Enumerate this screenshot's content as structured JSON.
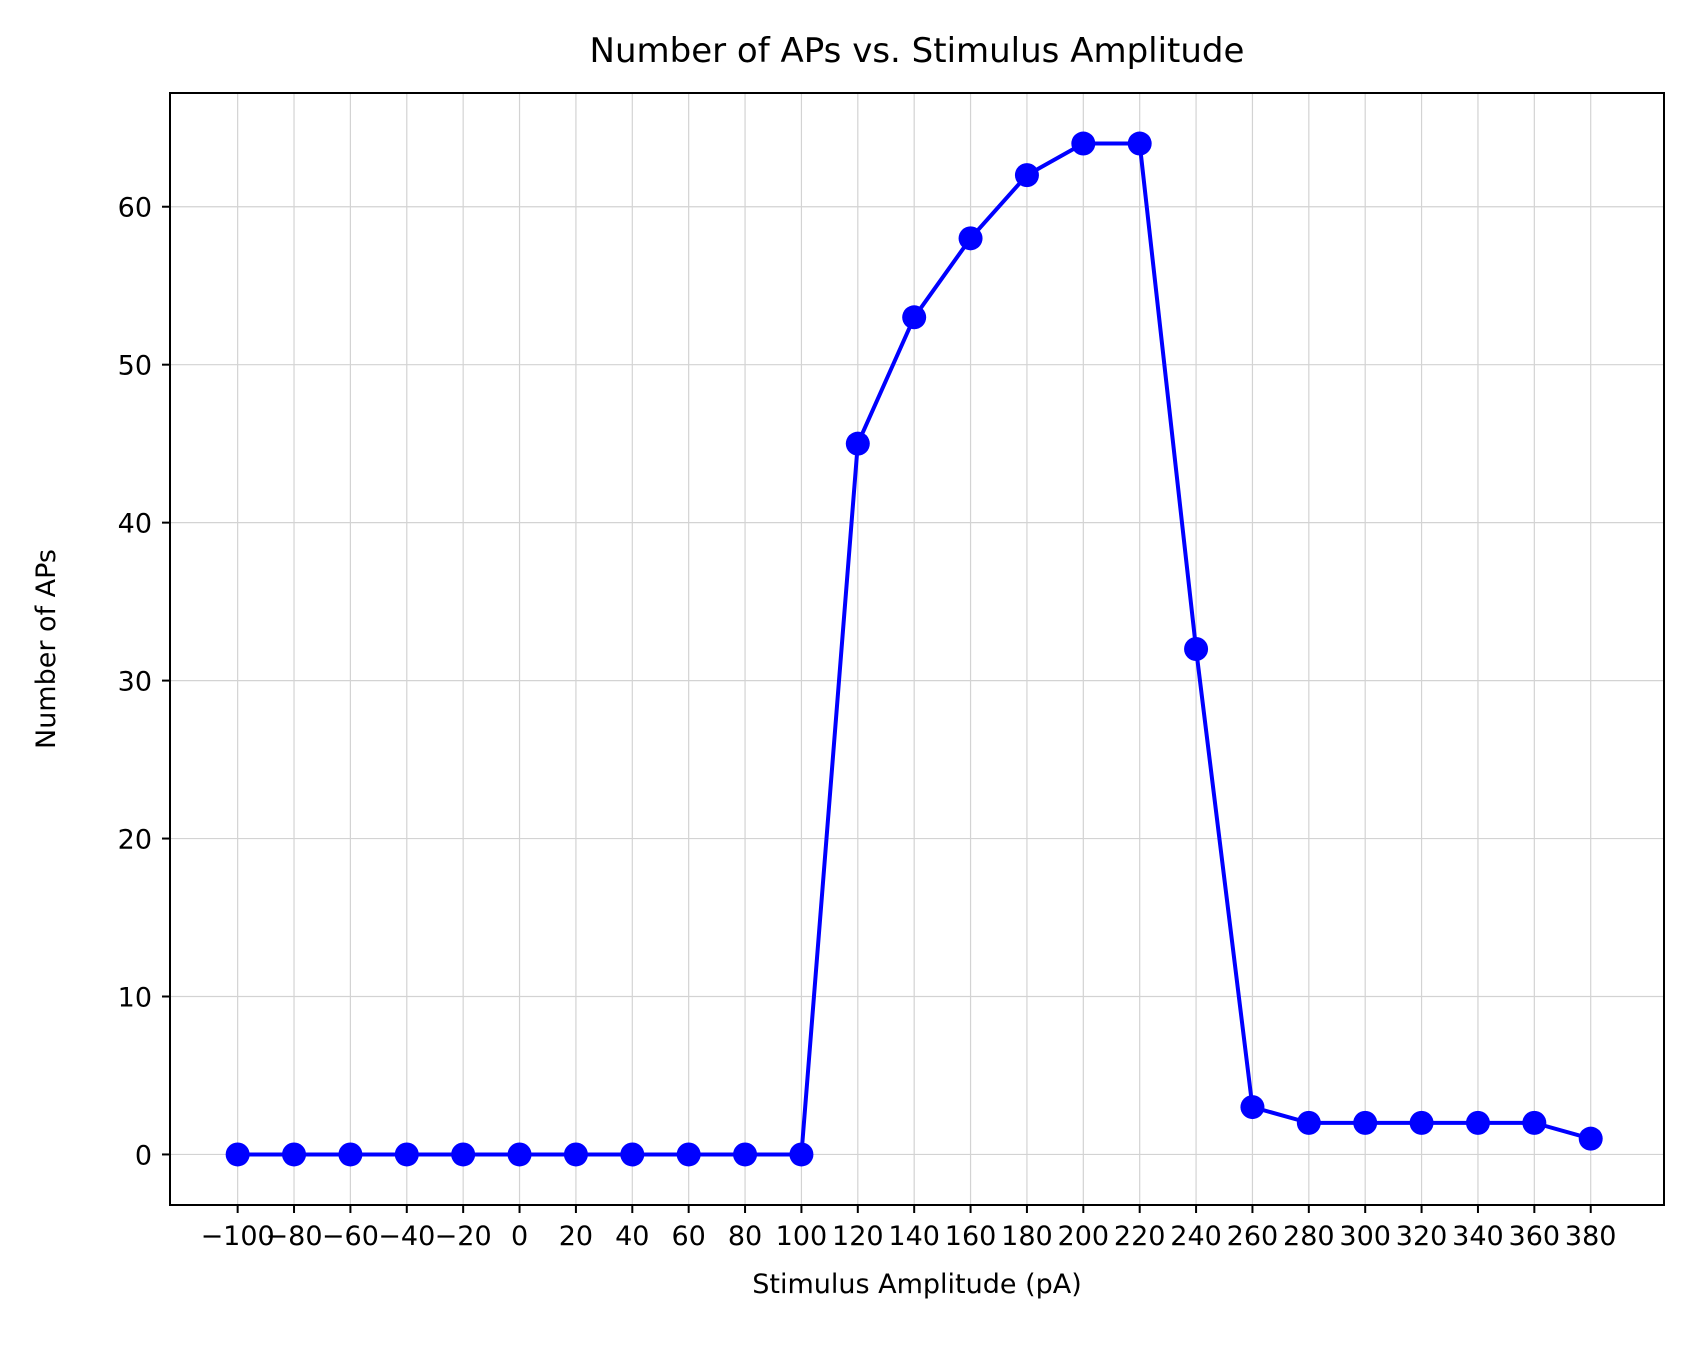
{
  "chart_data": {
    "type": "line",
    "title": "Number of APs vs. Stimulus Amplitude",
    "xlabel": "Stimulus Amplitude (pA)",
    "ylabel": "Number of APs",
    "x": [
      -100,
      -80,
      -60,
      -40,
      -20,
      0,
      20,
      40,
      60,
      80,
      100,
      120,
      140,
      160,
      180,
      200,
      220,
      240,
      260,
      280,
      300,
      320,
      340,
      360,
      380
    ],
    "series": [
      {
        "values": [
          0,
          0,
          0,
          0,
          0,
          0,
          0,
          0,
          0,
          0,
          0,
          45,
          53,
          58,
          62,
          64,
          64,
          32,
          3,
          2,
          2,
          2,
          2,
          2,
          1
        ],
        "color": "#0000ff",
        "marker": "circle"
      }
    ],
    "xticks": [
      "−100",
      "−80",
      "−60",
      "−40",
      "−20",
      "0",
      "20",
      "40",
      "60",
      "80",
      "100",
      "120",
      "140",
      "160",
      "180",
      "200",
      "220",
      "240",
      "260",
      "280",
      "300",
      "320",
      "340",
      "360",
      "380"
    ],
    "yticks": [
      "0",
      "10",
      "20",
      "30",
      "40",
      "50",
      "60"
    ],
    "xlim": [
      -124,
      406
    ],
    "ylim": [
      -3.2,
      67.2
    ],
    "grid": true,
    "grid_color": "#d3d3d3",
    "axis_color": "#000000"
  }
}
